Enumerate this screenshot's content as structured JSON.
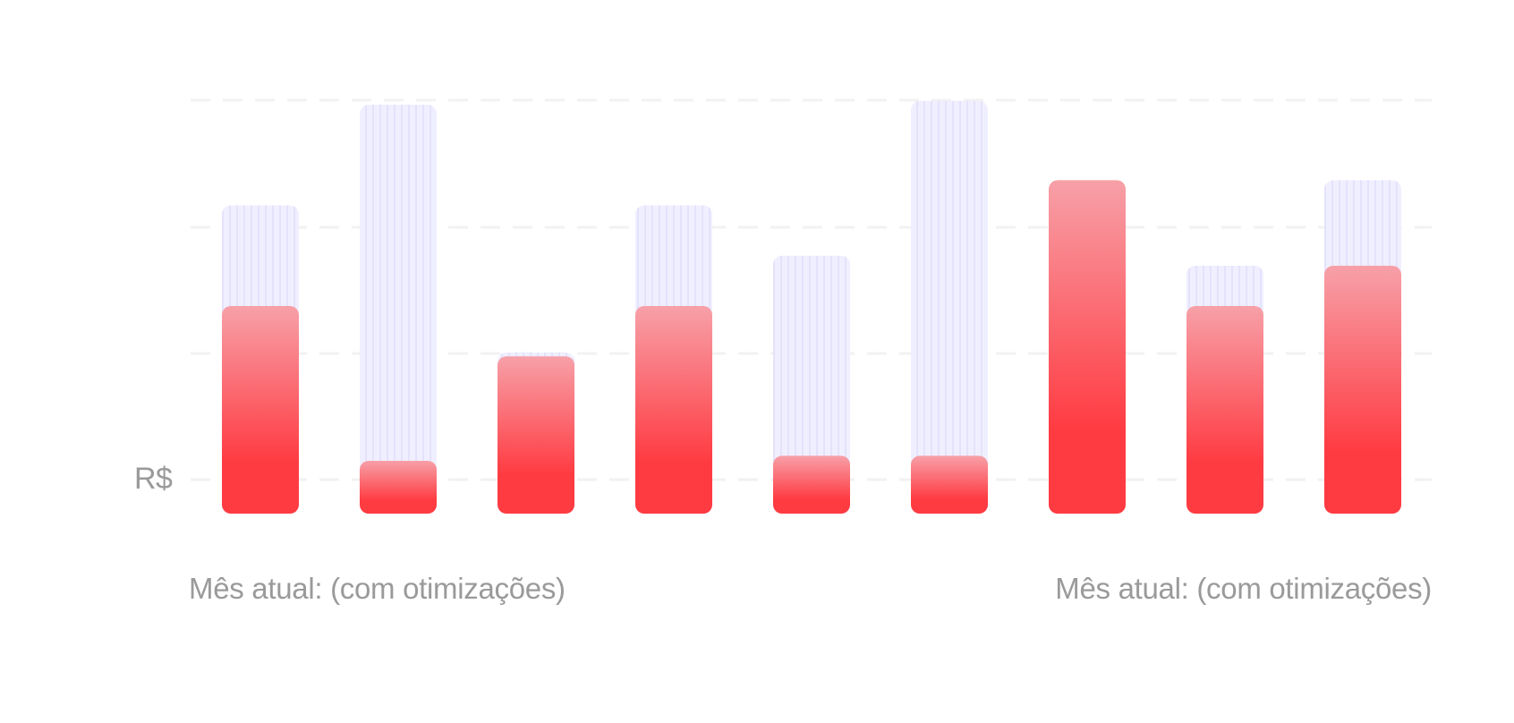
{
  "chart_data": {
    "type": "bar",
    "categories": [
      "",
      "",
      "",
      "",
      "",
      "",
      "",
      "",
      ""
    ],
    "series": [
      {
        "values": [
          2.45,
          3.25,
          1.28,
          2.45,
          2.05,
          3.28,
          2.65,
          1.97,
          2.65
        ]
      },
      {
        "values": [
          1.65,
          0.42,
          1.25,
          1.65,
          0.46,
          0.46,
          2.65,
          1.65,
          1.97
        ]
      }
    ],
    "ylabel": "R$",
    "xlabel_left": "Mês atual: (com otimizações)",
    "xlabel_right": "Mês atual: (com otimizações)",
    "ylim": [
      0,
      3.3
    ],
    "grid": true,
    "legend": "none",
    "colors": {
      "background_bar": "#f0efff",
      "background_bar_stripe": "#e4e2fb",
      "foreground_bar_top": "#f7a0a8",
      "foreground_bar_bottom": "#ff3b42",
      "gridline": "#f2f2f2",
      "text": "#9a9a9a"
    }
  }
}
